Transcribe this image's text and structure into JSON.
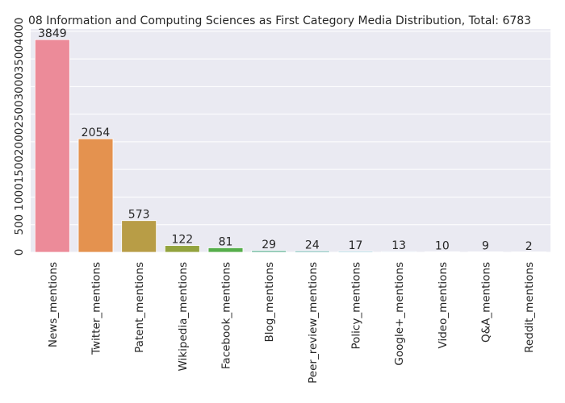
{
  "chart_data": {
    "type": "bar",
    "title": "08 Information and Computing Sciences as First Category Media Distribution, Total: 6783",
    "xlabel": "",
    "ylabel": "",
    "categories": [
      "News_mentions",
      "Twitter_mentions",
      "Patent_mentions",
      "Wikipedia_mentions",
      "Facebook_mentions",
      "Blog_mentions",
      "Peer_review_mentions",
      "Policy_mentions",
      "Google+_mentions",
      "Video_mentions",
      "Q&A_mentions",
      "Reddit_mentions"
    ],
    "values": [
      3849,
      2054,
      573,
      122,
      81,
      29,
      24,
      17,
      13,
      10,
      9,
      2
    ],
    "data_labels": [
      "3849",
      "2054",
      "573",
      "122",
      "81",
      "29",
      "24",
      "17",
      "13",
      "10",
      "9",
      "2"
    ],
    "yticks": [
      0,
      500,
      1000,
      1500,
      2000,
      2500,
      3000,
      3500,
      4000
    ],
    "ytick_labels": [
      "0",
      "500",
      "1000",
      "1500",
      "2000",
      "2500",
      "3000",
      "3500",
      "4000"
    ],
    "ylim": [
      0,
      4041
    ],
    "grid": true,
    "colors": {
      "background": "#eaeaf2",
      "grid": "#ffffff",
      "text": "#262626",
      "bars": [
        "#ec8b99",
        "#e4924f",
        "#b89d46",
        "#93a33e",
        "#56ae4b",
        "#55ad8e",
        "#59aaa5",
        "#5aa8bf",
        "#68a5dd",
        "#aa98ec",
        "#df84e6",
        "#ec87c4"
      ]
    }
  }
}
